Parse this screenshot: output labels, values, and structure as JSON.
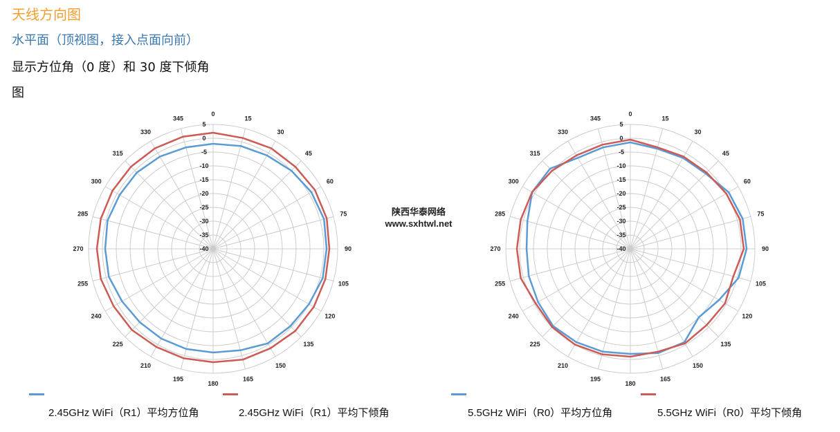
{
  "heading": "天线方向图",
  "subheading": "水平面（顶视图，接入点面向前）",
  "line1": "显示方位角（0 度）和 30 度下倾角",
  "line2": "图",
  "watermark": {
    "line1": "陕西华泰网络",
    "line2": "www.sxhtwl.net"
  },
  "colors": {
    "azimuth": "#5b9bd5",
    "downtilt": "#cc5a55",
    "grid": "#cccccc"
  },
  "chart_data": [
    {
      "type": "polar-line",
      "angle_labels": [
        "0",
        "15",
        "30",
        "45",
        "60",
        "75",
        "90",
        "105",
        "120",
        "135",
        "150",
        "165",
        "180",
        "195",
        "210",
        "225",
        "240",
        "255",
        "270",
        "285",
        "300",
        "315",
        "330",
        "345"
      ],
      "radial_labels": [
        "5",
        "0",
        "-5",
        "-10",
        "-15",
        "-20",
        "-25",
        "-30",
        "-35",
        "-40"
      ],
      "rlim": [
        -40,
        5
      ],
      "series": [
        {
          "name": "2.45GHz WiFi（R1）平均方位角",
          "color": "#5b9bd5",
          "angles": [
            0,
            15,
            30,
            45,
            60,
            75,
            90,
            105,
            120,
            135,
            150,
            165,
            180,
            195,
            210,
            225,
            240,
            255,
            270,
            285,
            300,
            315,
            330,
            345
          ],
          "values": [
            -2,
            -1.5,
            -1,
            0,
            1,
            1.5,
            1,
            1,
            0,
            -0.5,
            -0.5,
            -2,
            -2.5,
            -2.5,
            -2.5,
            -2.5,
            -2,
            -1,
            -1,
            -0.5,
            -1,
            -1,
            -1.5,
            -2
          ]
        },
        {
          "name": "2.45GHz WiFi（R1）平均下倾角",
          "color": "#cc5a55",
          "angles": [
            0,
            15,
            30,
            45,
            60,
            75,
            90,
            105,
            120,
            135,
            150,
            165,
            180,
            195,
            210,
            225,
            240,
            255,
            270,
            285,
            300,
            315,
            330,
            345
          ],
          "values": [
            2,
            1.5,
            2,
            2,
            2.5,
            2.5,
            2,
            2,
            2,
            2,
            1.5,
            1.5,
            1,
            1,
            1,
            1.5,
            1.5,
            2,
            2,
            2,
            2,
            2,
            2,
            2
          ]
        }
      ]
    },
    {
      "type": "polar-line",
      "angle_labels": [
        "0",
        "15",
        "30",
        "45",
        "60",
        "75",
        "90",
        "105",
        "120",
        "135",
        "150",
        "165",
        "180",
        "195",
        "210",
        "225",
        "240",
        "255",
        "270",
        "285",
        "300",
        "315",
        "330",
        "345"
      ],
      "radial_labels": [
        "5",
        "0",
        "-5",
        "-10",
        "-15",
        "-20",
        "-25",
        "-30",
        "-35",
        "-40"
      ],
      "rlim": [
        -40,
        5
      ],
      "series": [
        {
          "name": "5.5GHz WiFi（R0）平均方位角",
          "color": "#5b9bd5",
          "angles": [
            0,
            15,
            30,
            45,
            60,
            75,
            90,
            105,
            120,
            135,
            150,
            165,
            180,
            195,
            210,
            225,
            240,
            255,
            270,
            285,
            300,
            315,
            330,
            345
          ],
          "values": [
            -1.5,
            -2.5,
            -2,
            -1.5,
            1,
            2,
            2,
            0.5,
            -3,
            -5,
            -1,
            -1,
            -2,
            -1.5,
            -1,
            -0.5,
            -1.5,
            -2,
            -2.5,
            -1.5,
            1,
            1,
            -2,
            -2
          ]
        },
        {
          "name": "5.5GHz WiFi（R0）平均下倾角",
          "color": "#cc5a55",
          "angles": [
            0,
            15,
            30,
            45,
            60,
            75,
            90,
            105,
            120,
            135,
            150,
            165,
            180,
            195,
            210,
            225,
            240,
            255,
            270,
            285,
            300,
            315,
            330,
            345
          ],
          "values": [
            -0.5,
            -2,
            -1.5,
            -1,
            0,
            1,
            1,
            -1.5,
            -0.5,
            -1,
            -0.5,
            -1.5,
            -1,
            -0.5,
            0,
            0,
            -0.5,
            1,
            1,
            1,
            1,
            0,
            -1,
            -1
          ]
        }
      ]
    }
  ]
}
